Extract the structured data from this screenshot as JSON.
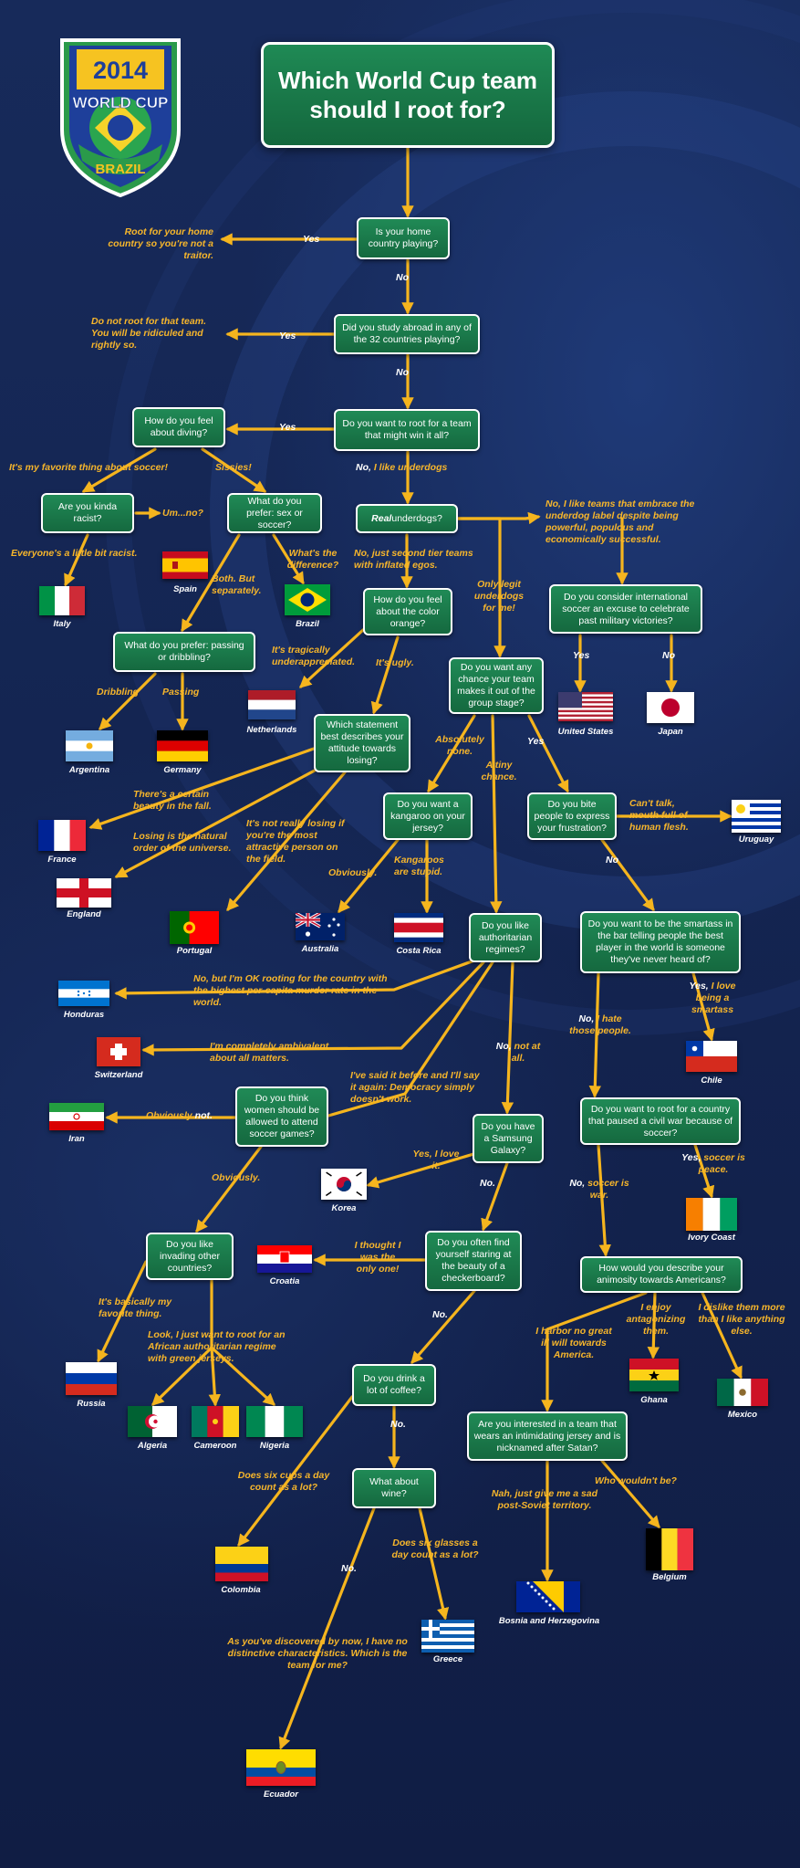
{
  "title": "Which World Cup team should I root for?",
  "logo": {
    "year": "2014",
    "line1": "WORLD CUP",
    "line2": "BRAZIL"
  },
  "colors": {
    "box": "#1a7a4a",
    "arrow": "#f5b51e",
    "label": "#f7b62b",
    "background": "#13224a"
  },
  "questions": {
    "home": "Is your home country playing?",
    "abroad": "Did you study abroad in any of the 32 countries playing?",
    "win": "Do you want to root for a team that might win it all?",
    "diving": "How do you feel about diving?",
    "racist": "Are you kinda racist?",
    "sex": "What do you prefer: sex or soccer?",
    "passing": "What do you prefer: passing or dribbling?",
    "real_underdogs_pre": "Real",
    "real_underdogs_post": " underdogs?",
    "orange": "How do you feel about the color orange?",
    "military": "Do you consider international soccer an excuse to celebrate past military victories?",
    "group": "Do you want any chance your team makes it out of the group stage?",
    "statement": "Which statement best describes your attitude towards losing?",
    "kangaroo": "Do you want a kangaroo on your jersey?",
    "bite": "Do you bite people to express your frustration?",
    "authoritarian": "Do you like authoritarian regimes?",
    "smartass": "Do you want to be the smartass in the bar telling people the best player in the world is someone they've never heard of?",
    "women": "Do you think women should be allowed to attend soccer games?",
    "samsung": "Do you have a Samsung Galaxy?",
    "civilwar": "Do you want to root for a country that paused a civil war because of soccer?",
    "invading": "Do you like invading other countries?",
    "checkerboard": "Do you often find yourself staring at the beauty of a checkerboard?",
    "animosity": "How would you describe your animosity towards Americans?",
    "coffee": "Do you drink a lot of coffee?",
    "satan": "Are you interested in a team that wears an intimidating jersey and is nicknamed after Satan?",
    "wine": "What about wine?"
  },
  "labels": {
    "yes_home": "Yes",
    "traitor": "Root for your home country so you're not a traitor.",
    "no_home": "No",
    "yes_abroad": "Yes",
    "ridiculed": "Do not root for that team. You will be ridiculed and rightly so.",
    "no_abroad": "No",
    "yes_win": "Yes",
    "no_like_a": "No,",
    "no_like_b": " I like underdogs",
    "favorite": "It's my favorite thing about soccer!",
    "sissies": "Sissies!",
    "umno": "Um...no?",
    "everyone": "Everyone's a little bit racist.",
    "whats_diff": "What's the difference?",
    "both": "Both. But separately.",
    "second_tier": "No, just second tier teams with inflated egos.",
    "embrace": "No, I like teams that embrace the underdog label despite being powerful, populous and economically successful.",
    "only_legit": "Only legit underdogs for me!",
    "tragically": "It's tragically underappreciated.",
    "ugly": "It's ugly.",
    "dribbling": "Dribbling",
    "passing": "Passing",
    "yes_mil": "Yes",
    "no_mil": "No",
    "absolutely": "Absolutely none.",
    "tiny": "A tiny chance.",
    "yes_group": "Yes",
    "beauty_fall": "There's a certain beauty in the fall.",
    "natural_order": "Losing is the natural order of the universe.",
    "not_really": "It's not really losing if you're the most attractive person on the field.",
    "obviously_k": "Obviously.",
    "kangaroos_stupid": "Kangaroos are stupid.",
    "cant_talk": "Can't talk, mouth full of human flesh.",
    "no_bite": "No",
    "ok_rooting": "No, but I'm OK rooting for the country with the highest per-capita murder rate in the world.",
    "ambivalent": "I'm completely ambivalent about all matters.",
    "democracy": "I've said it before and I'll say it again: Democracy simply doesn't work.",
    "no_not_a": "No,",
    "no_not_b": " not at all.",
    "yes_love_a": "Yes,",
    "yes_love_b": " I love being a smartass",
    "no_hate_a": "No,",
    "no_hate_b": " I hate those people.",
    "obviously_not_a": "Obviously",
    "obviously_not_b": " not.",
    "obviously_w": "Obviously.",
    "yes_love_it": "Yes, I love it.",
    "no_sam": "No.",
    "yes_peace_a": "Yes,",
    "yes_peace_b": " soccer is peace.",
    "no_war_a": "No,",
    "no_war_b": " soccer is war.",
    "thought_only": "I thought I was the only one!",
    "no_check": "No.",
    "basically": "It's basically my favorite thing.",
    "african": "Look, I just want to root for an African authoritarian regime with green jerseys.",
    "no_ill": "I harbor no great ill will towards America.",
    "antagonizing": "I enjoy antagonizing them.",
    "dislike": "I dislike them more than I like anything else.",
    "no_coffee": "No.",
    "six_cups": "Does six cups a day count as a lot?",
    "soviet": "Nah, just give me a sad post-Soviet territory.",
    "wouldnt": "Who wouldn't be?",
    "six_glasses": "Does six glasses a day count as a lot?",
    "no_wine": "No.",
    "discovered": "As you've discovered by now, I have no distinctive characteristics. Which is the team for me?"
  },
  "teams": {
    "spain": "Spain",
    "italy": "Italy",
    "brazil": "Brazil",
    "argentina": "Argentina",
    "germany": "Germany",
    "netherlands": "Netherlands",
    "usa": "United States",
    "japan": "Japan",
    "france": "France",
    "england": "England",
    "portugal": "Portugal",
    "australia": "Australia",
    "costarica": "Costa Rica",
    "uruguay": "Uruguay",
    "honduras": "Honduras",
    "switzerland": "Switzerland",
    "chile": "Chile",
    "iran": "Iran",
    "korea": "Korea",
    "ivorycoast": "Ivory Coast",
    "croatia": "Croatia",
    "russia": "Russia",
    "algeria": "Algeria",
    "cameroon": "Cameroon",
    "nigeria": "Nigeria",
    "ghana": "Ghana",
    "mexico": "Mexico",
    "colombia": "Colombia",
    "bosnia": "Bosnia and Herzegovina",
    "belgium": "Belgium",
    "greece": "Greece",
    "ecuador": "Ecuador"
  }
}
